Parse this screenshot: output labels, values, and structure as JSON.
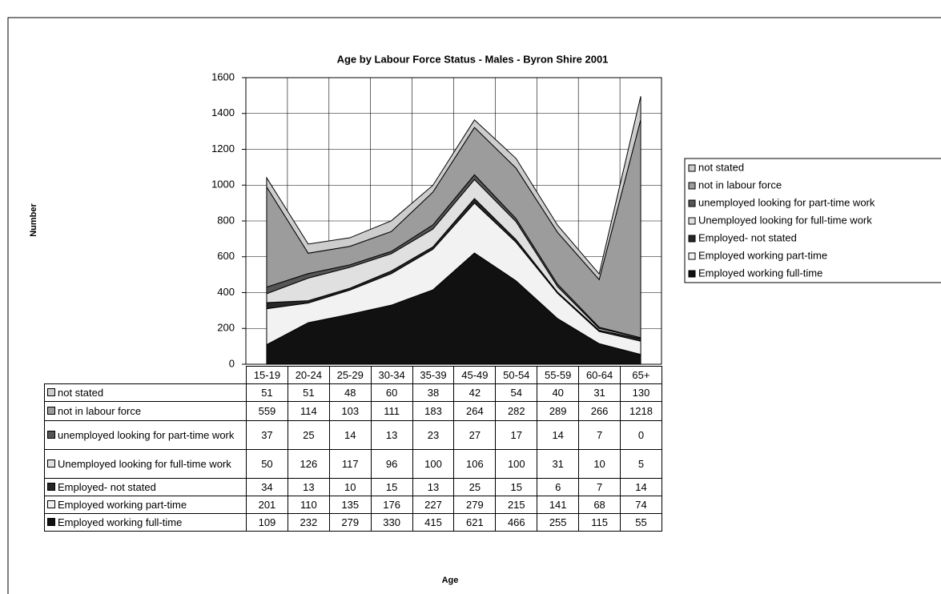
{
  "chart_data": {
    "type": "stacked_area",
    "title": "Age by Labour Force Status - Males - Byron Shire 2001",
    "ylabel": "Number",
    "xlabel": "Age",
    "categories": [
      "15-19",
      "20-24",
      "25-29",
      "30-34",
      "35-39",
      "45-49",
      "50-54",
      "55-59",
      "60-64",
      "65+"
    ],
    "series": [
      {
        "name": "Employed working full-time",
        "color": "#111111",
        "values": [
          109,
          232,
          279,
          330,
          415,
          621,
          466,
          255,
          115,
          55
        ]
      },
      {
        "name": "Employed working part-time",
        "color": "#f2f2f2",
        "values": [
          201,
          110,
          135,
          176,
          227,
          279,
          215,
          141,
          68,
          74
        ]
      },
      {
        "name": "Employed- not stated",
        "color": "#262626",
        "values": [
          34,
          13,
          10,
          15,
          13,
          25,
          15,
          6,
          7,
          14
        ]
      },
      {
        "name": "Unemployed looking for full-time work",
        "color": "#e0e0e0",
        "values": [
          50,
          126,
          117,
          96,
          100,
          106,
          100,
          31,
          10,
          5
        ]
      },
      {
        "name": "unemployed looking for part-time work",
        "color": "#555555",
        "values": [
          37,
          25,
          14,
          13,
          23,
          27,
          17,
          14,
          7,
          0
        ]
      },
      {
        "name": "not in labour force",
        "color": "#9c9c9c",
        "values": [
          559,
          114,
          103,
          111,
          183,
          264,
          282,
          289,
          266,
          1218
        ]
      },
      {
        "name": "not stated",
        "color": "#cdcdcd",
        "values": [
          51,
          51,
          48,
          60,
          38,
          42,
          54,
          40,
          31,
          130
        ]
      }
    ],
    "ylim": [
      0,
      1600
    ],
    "yticks": [
      0,
      200,
      400,
      600,
      800,
      1000,
      1200,
      1400,
      1600
    ],
    "grid": true,
    "legend": "right"
  }
}
